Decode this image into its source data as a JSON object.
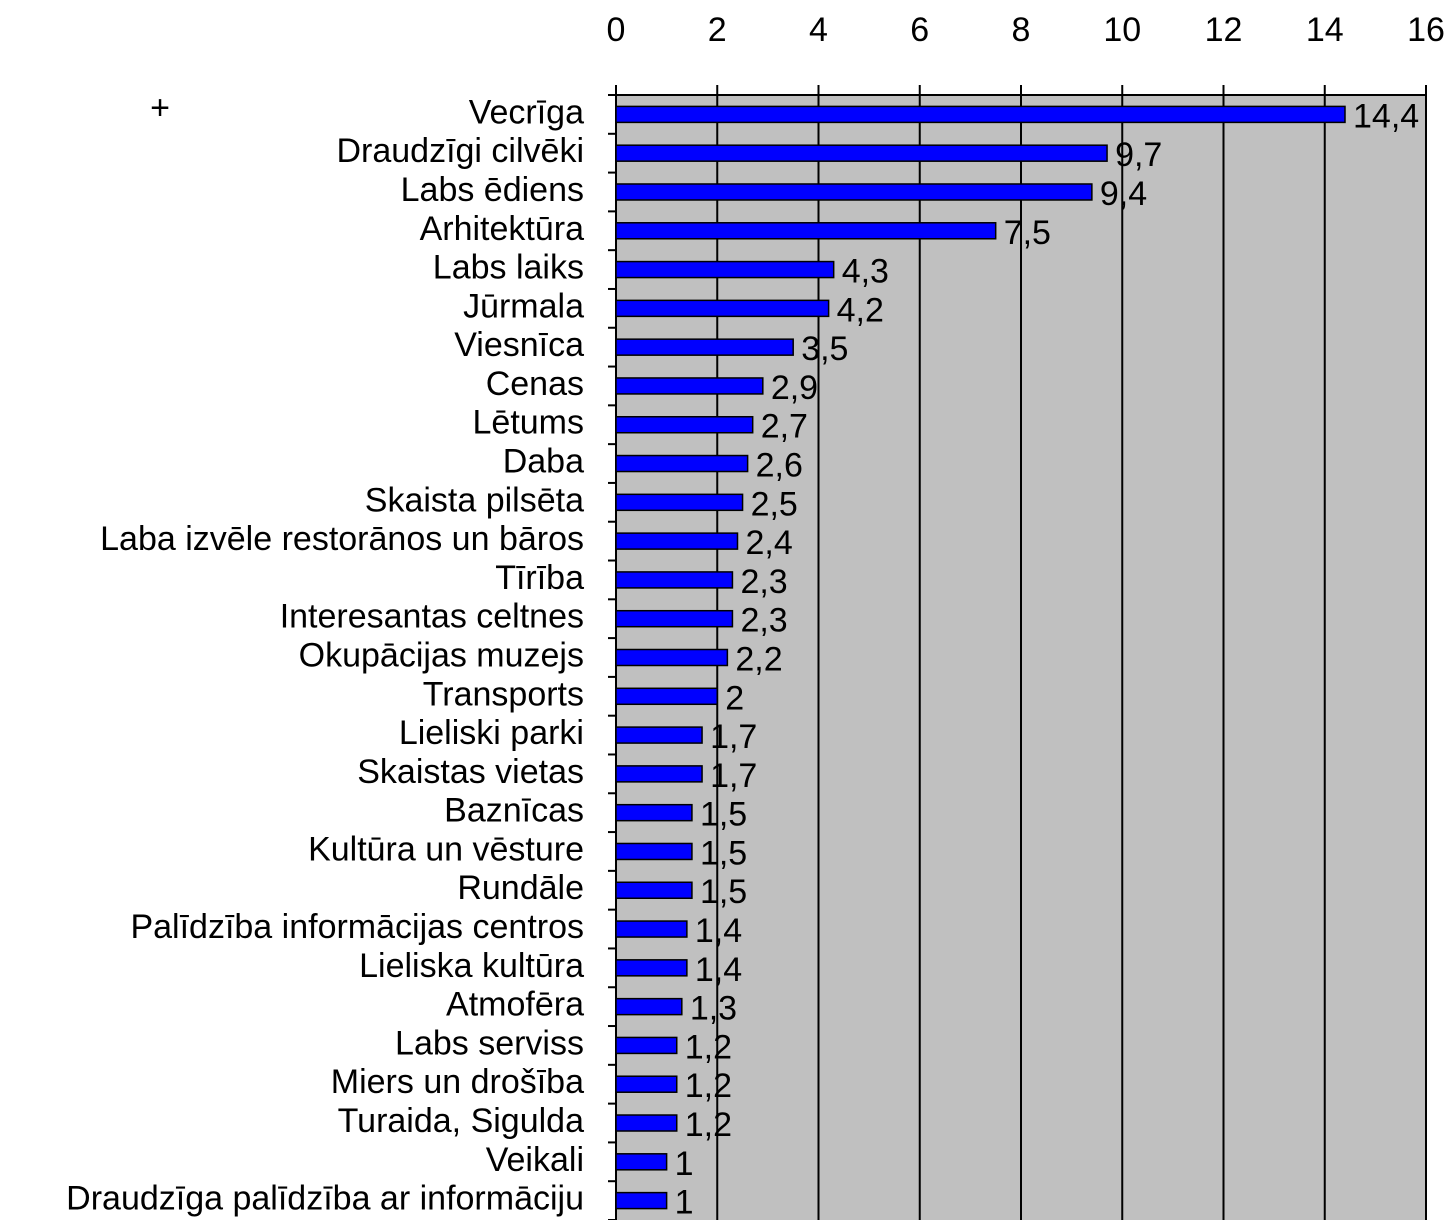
{
  "chart_data": {
    "type": "bar",
    "orientation": "horizontal",
    "annotation": "+",
    "categories": [
      "Vecrīga",
      "Draudzīgi cilvēki",
      "Labs ēdiens",
      "Arhitektūra",
      "Labs laiks",
      "Jūrmala",
      "Viesnīca",
      "Cenas",
      "Lētums",
      "Daba",
      "Skaista pilsēta",
      "Laba izvēle restorānos un bāros",
      "Tīrība",
      "Interesantas celtnes",
      "Okupācijas muzejs",
      "Transports",
      "Lieliski parki",
      "Skaistas vietas",
      "Baznīcas",
      "Kultūra un vēsture",
      "Rundāle",
      "Palīdzība informācijas centros",
      "Lieliska kultūra",
      "Atmofēra",
      "Labs serviss",
      "Miers un drošība",
      "Turaida, Sigulda",
      "Veikali",
      "Draudzīga palīdzība ar informāciju"
    ],
    "values": [
      14.4,
      9.7,
      9.4,
      7.5,
      4.3,
      4.2,
      3.5,
      2.9,
      2.7,
      2.6,
      2.5,
      2.4,
      2.3,
      2.3,
      2.2,
      2,
      1.7,
      1.7,
      1.5,
      1.5,
      1.5,
      1.4,
      1.4,
      1.3,
      1.2,
      1.2,
      1.2,
      1,
      1
    ],
    "value_labels": [
      "14,4",
      "9,7",
      "9,4",
      "7,5",
      "4,3",
      "4,2",
      "3,5",
      "2,9",
      "2,7",
      "2,6",
      "2,5",
      "2,4",
      "2,3",
      "2,3",
      "2,2",
      "2",
      "1,7",
      "1,7",
      "1,5",
      "1,5",
      "1,5",
      "1,4",
      "1,4",
      "1,3",
      "1,2",
      "1,2",
      "1,2",
      "1",
      "1"
    ],
    "color": "#0000ff",
    "plot_background": "#c0c0c0",
    "xlim": [
      0,
      16
    ],
    "xticks": [
      0,
      2,
      4,
      6,
      8,
      10,
      12,
      14,
      16
    ],
    "grid": true
  }
}
